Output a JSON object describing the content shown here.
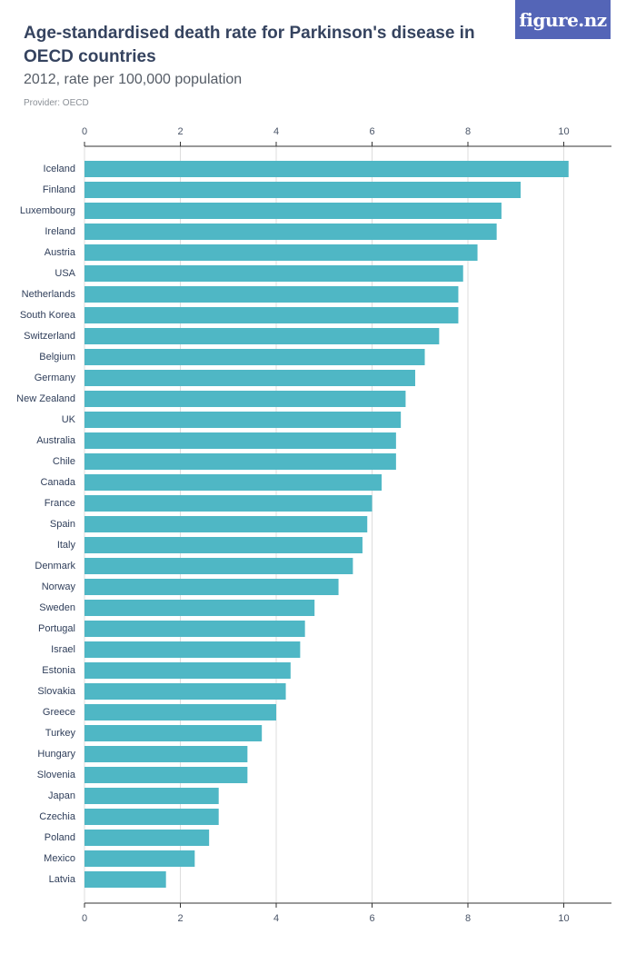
{
  "header": {
    "title": "Age-standardised death rate for Parkinson's disease in OECD countries",
    "subtitle": "2012, rate per 100,000 population",
    "provider": "Provider: OECD",
    "logo_text": "figure.nz"
  },
  "colors": {
    "bar": "#4fb7c5",
    "logo_bg": "#5465b7",
    "axis": "#333333",
    "grid": "#dddddd"
  },
  "chart_data": {
    "type": "bar",
    "orientation": "horizontal",
    "title": "Age-standardised death rate for Parkinson's disease in OECD countries",
    "subtitle": "2012, rate per 100,000 population",
    "xlim": [
      0,
      11
    ],
    "ticks": [
      0,
      2,
      4,
      6,
      8,
      10
    ],
    "grid": true,
    "categories": [
      "Iceland",
      "Finland",
      "Luxembourg",
      "Ireland",
      "Austria",
      "USA",
      "Netherlands",
      "South Korea",
      "Switzerland",
      "Belgium",
      "Germany",
      "New Zealand",
      "UK",
      "Australia",
      "Chile",
      "Canada",
      "France",
      "Spain",
      "Italy",
      "Denmark",
      "Norway",
      "Sweden",
      "Portugal",
      "Israel",
      "Estonia",
      "Slovakia",
      "Greece",
      "Turkey",
      "Hungary",
      "Slovenia",
      "Japan",
      "Czechia",
      "Poland",
      "Mexico",
      "Latvia"
    ],
    "values": [
      10.1,
      9.1,
      8.7,
      8.6,
      8.2,
      7.9,
      7.8,
      7.8,
      7.4,
      7.1,
      6.9,
      6.7,
      6.6,
      6.5,
      6.5,
      6.2,
      6.0,
      5.9,
      5.8,
      5.6,
      5.3,
      4.8,
      4.6,
      4.5,
      4.3,
      4.2,
      4.0,
      3.7,
      3.4,
      3.4,
      2.8,
      2.8,
      2.6,
      2.3,
      1.7
    ]
  }
}
